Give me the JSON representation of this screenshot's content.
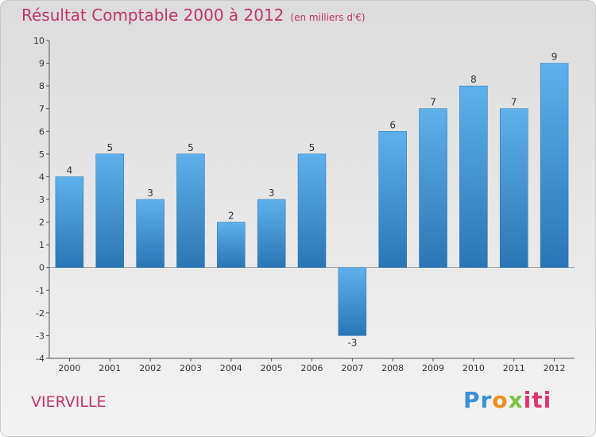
{
  "chart_data": {
    "type": "bar",
    "title": "Résultat Comptable 2000 à 2012",
    "subtitle": "(en milliers d'€)",
    "categories": [
      "2000",
      "2001",
      "2002",
      "2003",
      "2004",
      "2005",
      "2006",
      "2007",
      "2008",
      "2009",
      "2010",
      "2011",
      "2012"
    ],
    "values": [
      4,
      5,
      3,
      5,
      2,
      3,
      5,
      -3,
      6,
      7,
      8,
      7,
      9
    ],
    "ylim": [
      -4,
      10
    ],
    "yticks": [
      -4,
      -3,
      -2,
      -1,
      0,
      1,
      2,
      3,
      4,
      5,
      6,
      7,
      8,
      9,
      10
    ],
    "xlabel": "",
    "ylabel": "",
    "grid": false,
    "bar_color": "#3d8fd3"
  },
  "location": "VIERVILLE",
  "logo": {
    "text": "Proxiti",
    "parts": [
      "Pr",
      "o",
      "x",
      "iti"
    ]
  }
}
